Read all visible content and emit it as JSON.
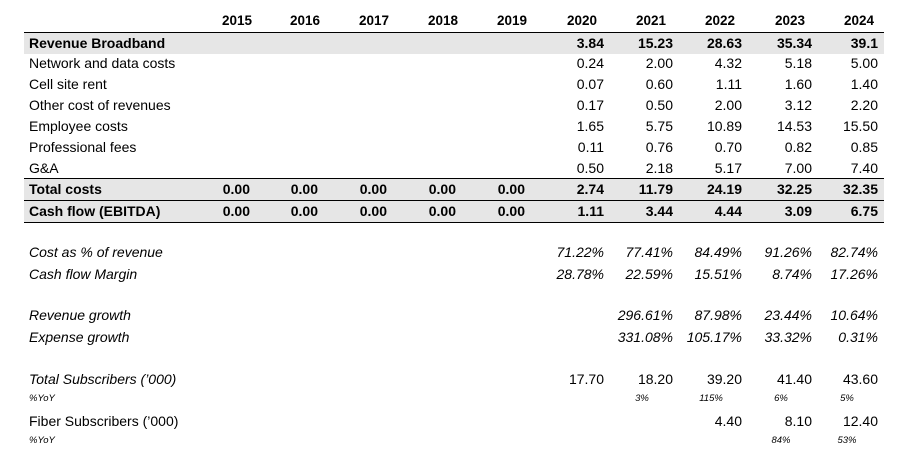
{
  "years": [
    "2015",
    "2016",
    "2017",
    "2018",
    "2019",
    "2020",
    "2021",
    "2022",
    "2023",
    "2024"
  ],
  "rows": [
    {
      "label": "Revenue Broadband",
      "values": [
        "",
        "",
        "",
        "",
        "",
        "3.84",
        "15.23",
        "28.63",
        "35.34",
        "39.1"
      ]
    },
    {
      "label": "Network and data costs",
      "values": [
        "",
        "",
        "",
        "",
        "",
        "0.24",
        "2.00",
        "4.32",
        "5.18",
        "5.00"
      ]
    },
    {
      "label": "Cell site rent",
      "values": [
        "",
        "",
        "",
        "",
        "",
        "0.07",
        "0.60",
        "1.11",
        "1.60",
        "1.40"
      ]
    },
    {
      "label": "Other cost of revenues",
      "values": [
        "",
        "",
        "",
        "",
        "",
        "0.17",
        "0.50",
        "2.00",
        "3.12",
        "2.20"
      ]
    },
    {
      "label": "Employee costs",
      "values": [
        "",
        "",
        "",
        "",
        "",
        "1.65",
        "5.75",
        "10.89",
        "14.53",
        "15.50"
      ]
    },
    {
      "label": "Professional fees",
      "values": [
        "",
        "",
        "",
        "",
        "",
        "0.11",
        "0.76",
        "0.70",
        "0.82",
        "0.85"
      ]
    },
    {
      "label": "G&A",
      "values": [
        "",
        "",
        "",
        "",
        "",
        "0.50",
        "2.18",
        "5.17",
        "7.00",
        "7.40"
      ]
    },
    {
      "label": "Total costs",
      "values": [
        "0.00",
        "0.00",
        "0.00",
        "0.00",
        "0.00",
        "2.74",
        "11.79",
        "24.19",
        "32.25",
        "32.35"
      ]
    },
    {
      "label": "Cash flow (EBITDA)",
      "values": [
        "0.00",
        "0.00",
        "0.00",
        "0.00",
        "0.00",
        "1.11",
        "3.44",
        "4.44",
        "3.09",
        "6.75"
      ]
    },
    {
      "label": "Cost as % of revenue",
      "values": [
        "",
        "",
        "",
        "",
        "",
        "71.22%",
        "77.41%",
        "84.49%",
        "91.26%",
        "82.74%"
      ]
    },
    {
      "label": "Cash flow Margin",
      "values": [
        "",
        "",
        "",
        "",
        "",
        "28.78%",
        "22.59%",
        "15.51%",
        "8.74%",
        "17.26%"
      ]
    },
    {
      "label": "Revenue growth",
      "values": [
        "",
        "",
        "",
        "",
        "",
        "",
        "296.61%",
        "87.98%",
        "23.44%",
        "10.64%"
      ]
    },
    {
      "label": "Expense growth",
      "values": [
        "",
        "",
        "",
        "",
        "",
        "",
        "331.08%",
        "105.17%",
        "33.32%",
        "0.31%"
      ]
    },
    {
      "label": "Total Subscribers (’000)",
      "values": [
        "",
        "",
        "",
        "",
        "",
        "17.70",
        "18.20",
        "39.20",
        "41.40",
        "43.60"
      ]
    },
    {
      "label": "%YoY",
      "values": [
        "",
        "",
        "",
        "",
        "",
        "",
        "3%",
        "115%",
        "6%",
        "5%"
      ]
    },
    {
      "label": "Fiber Subscribers (’000)",
      "values": [
        "",
        "",
        "",
        "",
        "",
        "",
        "",
        "4.40",
        "8.10",
        "12.40"
      ]
    },
    {
      "label": "%YoY",
      "values": [
        "",
        "",
        "",
        "",
        "",
        "",
        "",
        "",
        "84%",
        "53%"
      ]
    }
  ]
}
